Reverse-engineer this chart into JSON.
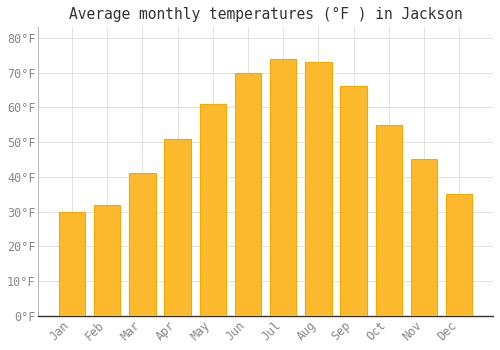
{
  "title": "Average monthly temperatures (°F ) in Jackson",
  "months": [
    "Jan",
    "Feb",
    "Mar",
    "Apr",
    "May",
    "Jun",
    "Jul",
    "Aug",
    "Sep",
    "Oct",
    "Nov",
    "Dec"
  ],
  "values": [
    30,
    32,
    41,
    51,
    61,
    70,
    74,
    73,
    66,
    55,
    45,
    35
  ],
  "bar_color_face": "#FDB92E",
  "bar_color_edge": "#F5A800",
  "background_color": "#FFFFFF",
  "grid_color": "#DDDDDD",
  "ylim": [
    0,
    83
  ],
  "yticks": [
    0,
    10,
    20,
    30,
    40,
    50,
    60,
    70,
    80
  ],
  "title_fontsize": 10.5,
  "tick_fontsize": 8.5,
  "tick_color": "#888888"
}
